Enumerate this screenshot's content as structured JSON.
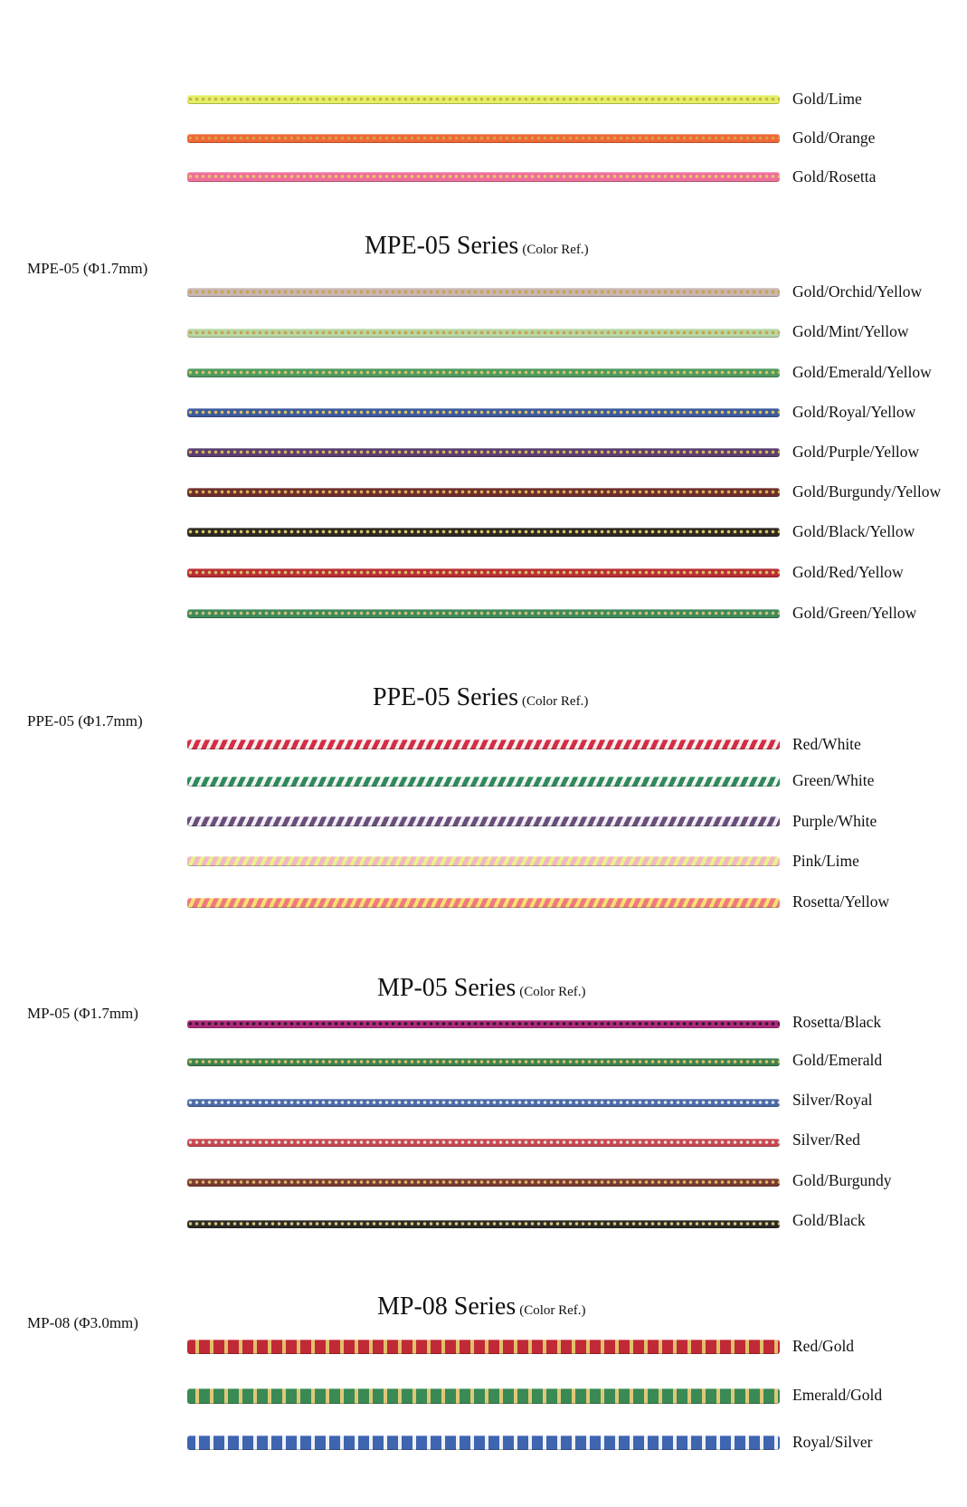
{
  "top_group": {
    "cords": [
      {
        "name": "Gold/Lime",
        "base": "#e4ef63",
        "accent": "#c6b44a",
        "pattern": "dots"
      },
      {
        "name": "Gold/Orange",
        "base": "#f06838",
        "accent": "#d8a246",
        "pattern": "dots"
      },
      {
        "name": "Gold/Rosetta",
        "base": "#ef6f9d",
        "accent": "#e7c86a",
        "pattern": "dots"
      }
    ]
  },
  "sections": [
    {
      "title": "MPE-05 Series",
      "ref": "(Color Ref.)",
      "label": "MPE-05 (Φ1.7mm)",
      "cords": [
        {
          "name": "Gold/Orchid/Yellow",
          "base": "#c8b6b0",
          "accent": "#c9a24e",
          "pattern": "dots"
        },
        {
          "name": "Gold/Mint/Yellow",
          "base": "#b7d7a3",
          "accent": "#c8a04c",
          "pattern": "dots"
        },
        {
          "name": "Gold/Emerald/Yellow",
          "base": "#4f9a5f",
          "accent": "#d2c46a",
          "pattern": "dots"
        },
        {
          "name": "Gold/Royal/Yellow",
          "base": "#3e5a9e",
          "accent": "#d8c460",
          "pattern": "dots"
        },
        {
          "name": "Gold/Purple/Yellow",
          "base": "#5b3f70",
          "accent": "#d9b35a",
          "pattern": "dots"
        },
        {
          "name": "Gold/Burgundy/Yellow",
          "base": "#6e2f2c",
          "accent": "#d8b45a",
          "pattern": "dots"
        },
        {
          "name": "Gold/Black/Yellow",
          "base": "#2e2a22",
          "accent": "#d9c46a",
          "pattern": "dots"
        },
        {
          "name": "Gold/Red/Yellow",
          "base": "#b82f35",
          "accent": "#d9bf68",
          "pattern": "dots"
        },
        {
          "name": "Gold/Green/Yellow",
          "base": "#3f8a5a",
          "accent": "#d0c27a",
          "pattern": "dots"
        }
      ]
    },
    {
      "title": "PPE-05 Series",
      "ref": "(Color Ref.)",
      "label": "PPE-05 (Φ1.7mm)",
      "cords": [
        {
          "name": "Red/White",
          "base": "#d42e44",
          "accent": "#f4f0f0",
          "pattern": "stripes"
        },
        {
          "name": "Green/White",
          "base": "#2f8a5c",
          "accent": "#f2f2f2",
          "pattern": "stripes"
        },
        {
          "name": "Purple/White",
          "base": "#6a4f7c",
          "accent": "#f0eef2",
          "pattern": "stripes"
        },
        {
          "name": "Pink/Lime",
          "base": "#f2b7c6",
          "accent": "#eaf28a",
          "pattern": "stripes"
        },
        {
          "name": "Rosetta/Yellow",
          "base": "#f07a82",
          "accent": "#f6e170",
          "pattern": "stripes"
        }
      ]
    },
    {
      "title": "MP-05 Series",
      "ref": "(Color Ref.)",
      "label": "MP-05 (Φ1.7mm)",
      "cords": [
        {
          "name": "Rosetta/Black",
          "base": "#b02a7c",
          "accent": "#2a1d2a",
          "pattern": "dots"
        },
        {
          "name": "Gold/Emerald",
          "base": "#3f8250",
          "accent": "#d6c06a",
          "pattern": "dots"
        },
        {
          "name": "Silver/Royal",
          "base": "#4a6aa8",
          "accent": "#dfe3ea",
          "pattern": "dots"
        },
        {
          "name": "Silver/Red",
          "base": "#c9474f",
          "accent": "#dcdcdc",
          "pattern": "dots"
        },
        {
          "name": "Gold/Burgundy",
          "base": "#7a3a32",
          "accent": "#d6b86a",
          "pattern": "dots"
        },
        {
          "name": "Gold/Black",
          "base": "#2b2a25",
          "accent": "#d8c37a",
          "pattern": "dots"
        }
      ]
    },
    {
      "title": "MP-08 Series",
      "ref": "(Color Ref.)",
      "label": "MP-08 (Φ3.0mm)",
      "cords": [
        {
          "name": "Red/Gold",
          "base": "#c02a36",
          "accent": "#e2c06a",
          "pattern": "blocks"
        },
        {
          "name": "Emerald/Gold",
          "base": "#3a8a55",
          "accent": "#e0c879",
          "pattern": "blocks"
        },
        {
          "name": "Royal/Silver",
          "base": "#3f64b0",
          "accent": "#eef0f4",
          "pattern": "blocks"
        }
      ]
    }
  ]
}
